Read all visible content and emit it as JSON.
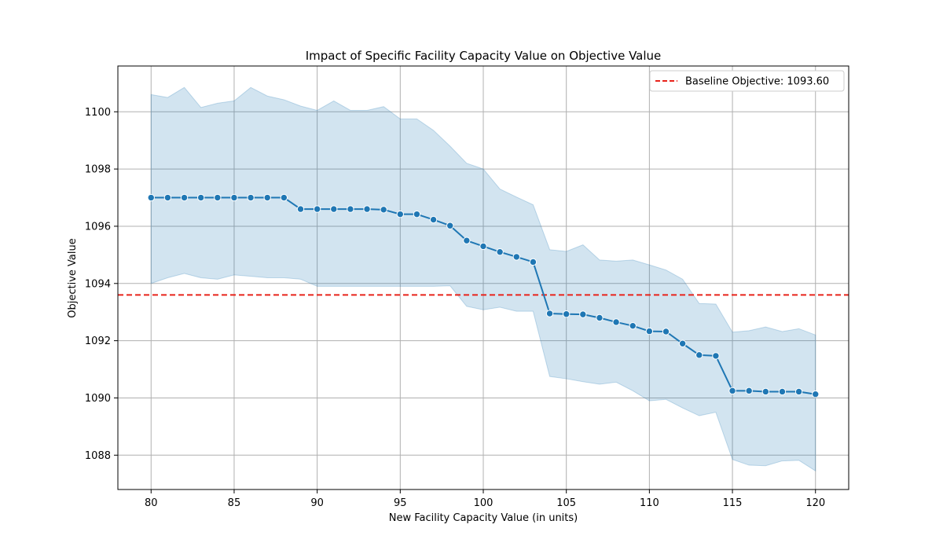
{
  "chart_data": {
    "type": "line",
    "title": "Impact of Specific Facility Capacity Value on Objective Value",
    "xlabel": "New Facility Capacity Value (in units)",
    "ylabel": "Objective Value",
    "xlim": [
      78,
      122
    ],
    "ylim": [
      1086.8,
      1101.6
    ],
    "xticks": [
      80,
      85,
      90,
      95,
      100,
      105,
      110,
      115,
      120
    ],
    "yticks": [
      1088,
      1090,
      1092,
      1094,
      1096,
      1098,
      1100
    ],
    "grid": true,
    "legend_position": "top-right",
    "baseline": {
      "label": "Baseline Objective: 1093.60",
      "value": 1093.6,
      "color": "#e8231b"
    },
    "series": [
      {
        "color": "#1f77b4",
        "band_color": "#1f77b4",
        "x": [
          80,
          81,
          82,
          83,
          84,
          85,
          86,
          87,
          88,
          89,
          90,
          91,
          92,
          93,
          94,
          95,
          96,
          97,
          98,
          99,
          100,
          101,
          102,
          103,
          104,
          105,
          106,
          107,
          108,
          109,
          110,
          111,
          112,
          113,
          114,
          115,
          116,
          117,
          118,
          119,
          120
        ],
        "values": [
          1097.0,
          1097.0,
          1097.0,
          1097.0,
          1097.0,
          1097.0,
          1097.0,
          1097.0,
          1097.0,
          1096.6,
          1096.6,
          1096.6,
          1096.6,
          1096.6,
          1096.58,
          1096.42,
          1096.42,
          1096.23,
          1096.02,
          1095.5,
          1095.3,
          1095.1,
          1094.93,
          1094.75,
          1092.95,
          1092.93,
          1092.92,
          1092.8,
          1092.65,
          1092.52,
          1092.33,
          1092.32,
          1091.9,
          1091.5,
          1091.47,
          1090.25,
          1090.25,
          1090.22,
          1090.22,
          1090.22,
          1090.13
        ],
        "upper": [
          1100.6,
          1100.5,
          1100.85,
          1100.15,
          1100.3,
          1100.38,
          1100.85,
          1100.55,
          1100.42,
          1100.2,
          1100.05,
          1100.38,
          1100.05,
          1100.05,
          1100.18,
          1099.75,
          1099.75,
          1099.35,
          1098.8,
          1098.2,
          1098.0,
          1097.3,
          1097.02,
          1096.75,
          1095.18,
          1095.12,
          1095.35,
          1094.82,
          1094.78,
          1094.82,
          1094.65,
          1094.47,
          1094.15,
          1093.3,
          1093.28,
          1092.3,
          1092.35,
          1092.48,
          1092.32,
          1092.42,
          1092.2
        ],
        "lower": [
          1094.0,
          1094.2,
          1094.35,
          1094.2,
          1094.15,
          1094.3,
          1094.25,
          1094.2,
          1094.2,
          1094.15,
          1093.9,
          1093.9,
          1093.9,
          1093.9,
          1093.9,
          1093.9,
          1093.9,
          1093.9,
          1093.92,
          1093.2,
          1093.08,
          1093.17,
          1093.03,
          1093.03,
          1090.75,
          1090.67,
          1090.57,
          1090.48,
          1090.55,
          1090.25,
          1089.9,
          1089.95,
          1089.65,
          1089.38,
          1089.5,
          1087.85,
          1087.65,
          1087.63,
          1087.8,
          1087.82,
          1087.45
        ]
      }
    ]
  }
}
